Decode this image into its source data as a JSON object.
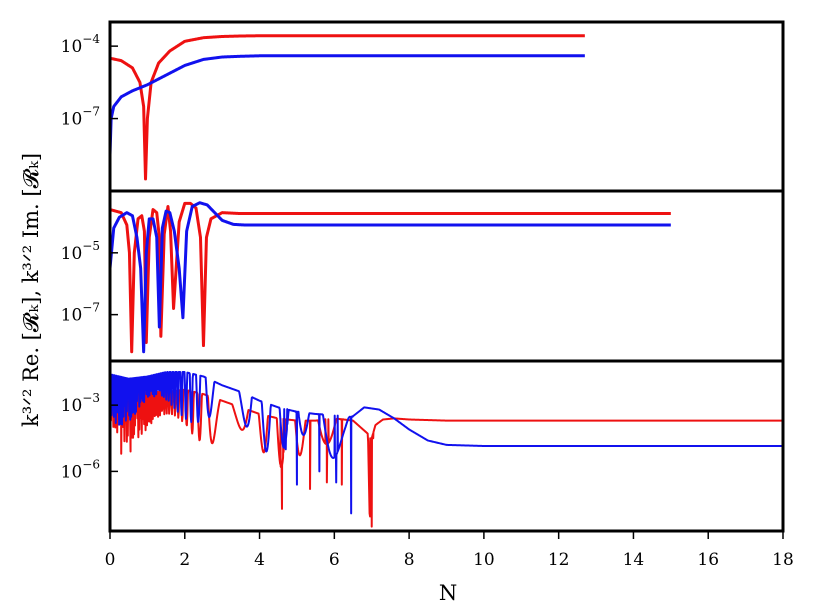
{
  "chart_data": [
    {
      "type": "line",
      "panel": "top",
      "yscale": "log",
      "ylim_exp": [
        -10,
        -3
      ],
      "yticks": [
        {
          "base": "10",
          "exp": "−4"
        },
        {
          "base": "10",
          "exp": "−7"
        }
      ],
      "series": [
        {
          "color": "#ee1111",
          "x": [
            0.0,
            0.3,
            0.6,
            0.8,
            0.9,
            0.95,
            1.0,
            1.1,
            1.3,
            1.6,
            2.0,
            2.5,
            3.0,
            3.5,
            4.0,
            6.0,
            10.0,
            12.7
          ],
          "y_exp": [
            -4.5,
            -4.6,
            -4.9,
            -5.5,
            -6.5,
            -9.5,
            -7.0,
            -5.5,
            -4.7,
            -4.2,
            -3.8,
            -3.65,
            -3.6,
            -3.58,
            -3.57,
            -3.57,
            -3.57,
            -3.57
          ]
        },
        {
          "color": "#1111ee",
          "x": [
            0.0,
            0.03,
            0.1,
            0.3,
            0.6,
            1.0,
            1.5,
            2.0,
            2.5,
            3.0,
            3.5,
            4.0,
            6.0,
            10.0,
            12.7
          ],
          "y_exp": [
            -8.5,
            -7.0,
            -6.5,
            -6.1,
            -5.85,
            -5.6,
            -5.2,
            -4.8,
            -4.55,
            -4.45,
            -4.42,
            -4.4,
            -4.4,
            -4.4,
            -4.4
          ]
        }
      ]
    },
    {
      "type": "line",
      "panel": "middle",
      "yscale": "log",
      "ylim_exp": [
        -8.5,
        -3.0
      ],
      "yticks": [
        {
          "base": "10",
          "exp": "−5"
        },
        {
          "base": "10",
          "exp": "−7"
        }
      ],
      "series": [
        {
          "color": "#ee1111",
          "x": [
            0.0,
            0.15,
            0.3,
            0.45,
            0.52,
            0.58,
            0.65,
            0.75,
            0.85,
            0.92,
            0.97,
            1.05,
            1.15,
            1.25,
            1.32,
            1.36,
            1.45,
            1.55,
            1.62,
            1.7,
            1.85,
            2.0,
            2.15,
            2.3,
            2.42,
            2.5,
            2.58,
            2.7,
            3.0,
            3.5,
            4.0,
            6.0,
            10.0,
            15.0
          ],
          "y_exp": [
            -3.6,
            -3.65,
            -3.7,
            -4.1,
            -5.0,
            -8.2,
            -5.0,
            -3.9,
            -3.8,
            -4.3,
            -7.9,
            -4.5,
            -3.6,
            -3.7,
            -4.5,
            -7.7,
            -4.4,
            -3.5,
            -4.3,
            -6.8,
            -4.0,
            -3.4,
            -3.4,
            -3.55,
            -4.5,
            -8.0,
            -4.5,
            -3.9,
            -3.7,
            -3.73,
            -3.73,
            -3.73,
            -3.73,
            -3.73
          ]
        },
        {
          "color": "#1111ee",
          "x": [
            0.0,
            0.1,
            0.25,
            0.45,
            0.6,
            0.72,
            0.82,
            0.9,
            0.97,
            1.05,
            1.15,
            1.25,
            1.32,
            1.4,
            1.5,
            1.6,
            1.72,
            1.85,
            1.95,
            2.05,
            2.2,
            2.4,
            2.6,
            2.8,
            3.0,
            3.3,
            3.6,
            4.0,
            6.0,
            10.0,
            15.0
          ],
          "y_exp": [
            -5.5,
            -4.2,
            -3.85,
            -3.7,
            -3.8,
            -4.5,
            -5.5,
            -8.2,
            -5.0,
            -3.9,
            -3.9,
            -4.5,
            -7.4,
            -4.2,
            -3.65,
            -3.7,
            -4.3,
            -5.5,
            -7.1,
            -4.3,
            -3.5,
            -3.38,
            -3.45,
            -3.7,
            -3.95,
            -4.08,
            -4.1,
            -4.1,
            -4.1,
            -4.1,
            -4.1
          ]
        }
      ]
    },
    {
      "type": "line",
      "panel": "bottom",
      "yscale": "log",
      "ylim_exp": [
        -8.7,
        -1.0
      ],
      "yticks": [
        {
          "base": "10",
          "exp": "−3"
        },
        {
          "base": "10",
          "exp": "−6"
        }
      ],
      "series": [
        {
          "color": "#ee1111",
          "x": [
            0.0,
            0.2,
            0.5,
            1.0,
            1.5,
            2.0,
            2.5,
            3.0,
            3.5,
            4.0,
            4.5,
            5.0,
            5.5,
            6.0,
            6.5,
            6.9,
            6.95,
            7.0,
            7.1,
            7.3,
            7.6,
            8.0,
            9.0,
            12.0,
            18.0
          ],
          "y_exp": [
            -2.2,
            -2.3,
            -2.6,
            -2.4,
            -2.4,
            -2.3,
            -2.5,
            -2.8,
            -3.1,
            -3.4,
            -3.6,
            -3.7,
            -3.7,
            -3.6,
            -3.7,
            -4.3,
            -8.5,
            -4.5,
            -3.9,
            -3.65,
            -3.6,
            -3.65,
            -3.7,
            -3.7,
            -3.7
          ],
          "oscillation": {
            "x_start": 0.0,
            "x_end": 7.0,
            "dip_x": [
              0.3,
              0.55,
              4.6,
              5.35,
              5.8,
              6.2,
              7.0
            ],
            "dip_y_exp": [
              -5.2,
              -5.1,
              -7.7,
              -6.8,
              -6.5,
              -6.6,
              -8.5
            ]
          }
        },
        {
          "color": "#1111ee",
          "x": [
            0.0,
            0.5,
            1.0,
            1.5,
            2.0,
            2.5,
            3.0,
            3.5,
            4.0,
            4.5,
            5.0,
            5.5,
            6.0,
            6.3,
            6.5,
            6.8,
            7.2,
            7.6,
            8.0,
            8.5,
            9.0,
            10.0,
            12.0,
            18.0
          ],
          "y_exp": [
            -1.6,
            -1.8,
            -1.7,
            -1.5,
            -1.5,
            -1.7,
            -2.1,
            -2.4,
            -2.8,
            -3.1,
            -3.3,
            -3.4,
            -3.45,
            -3.6,
            -3.5,
            -3.1,
            -3.2,
            -3.6,
            -4.1,
            -4.6,
            -4.8,
            -4.85,
            -4.85,
            -4.85
          ],
          "oscillation": {
            "x_start": 0.0,
            "x_end": 6.5,
            "dip_x": [
              4.7,
              5.0,
              5.6,
              6.05,
              6.45
            ],
            "dip_y_exp": [
              -5.0,
              -6.6,
              -6.0,
              -6.5,
              -7.9
            ]
          }
        }
      ]
    }
  ],
  "shared": {
    "xlabel": "N",
    "xlim": [
      0,
      18
    ],
    "xticks": [
      "0",
      "2",
      "4",
      "6",
      "8",
      "10",
      "12",
      "14",
      "16",
      "18"
    ],
    "ylabel": "k³ᐟ² Re. [𝓡ₖ],  k³ᐟ² Im. [𝓡ₖ]"
  }
}
